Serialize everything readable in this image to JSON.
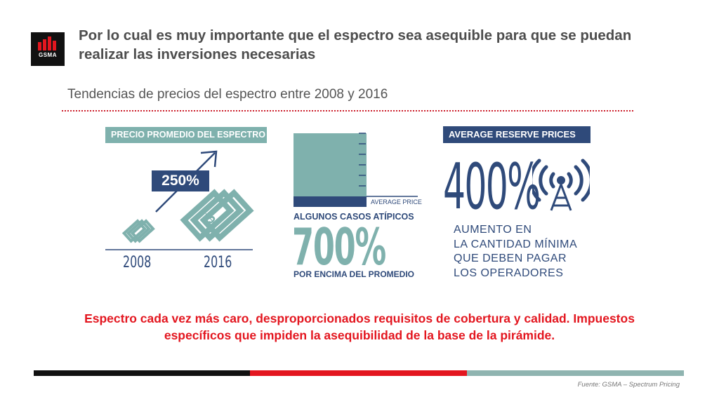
{
  "header": {
    "logo_text": "GSMA",
    "title": "Por lo cual es muy importante que el espectro sea asequible para que se puedan realizar las inversiones necesarias"
  },
  "subtitle": "Tendencias de precios del espectro entre 2008 y 2016",
  "panel1": {
    "label": "PRECIO PROMEDIO DEL ESPECTRO",
    "increase": "250%",
    "year_start": "2008",
    "year_end": "2016"
  },
  "panel2": {
    "avg_label": "AVERAGE PRICE",
    "label": "ALGUNOS CASOS ATÍPICOS",
    "value": "700%",
    "caption": "POR ENCIMA DEL PROMEDIO"
  },
  "panel3": {
    "label": "AVERAGE RESERVE PRICES",
    "value": "400%",
    "description_lines": [
      "AUMENTO EN",
      "LA CANTIDAD MÍNIMA",
      "QUE DEBEN PAGAR",
      "LOS OPERADORES"
    ]
  },
  "message": {
    "line1": "Espectro cada vez más caro, desproporcionados requisitos de cobertura y calidad. Impuestos",
    "line2": "específicos que impiden la asequibilidad de la base de la pirámide."
  },
  "source": "Fuente: GSMA – Spectrum Pricing",
  "colors": {
    "brand_red": "#e3161f",
    "navy": "#2f4a7a",
    "teal": "#7fb1ad",
    "black": "#111111"
  },
  "icons": [
    "gsma-logo-icon",
    "arrow-up-right-icon",
    "banknotes-icon",
    "broadcast-tower-icon"
  ]
}
